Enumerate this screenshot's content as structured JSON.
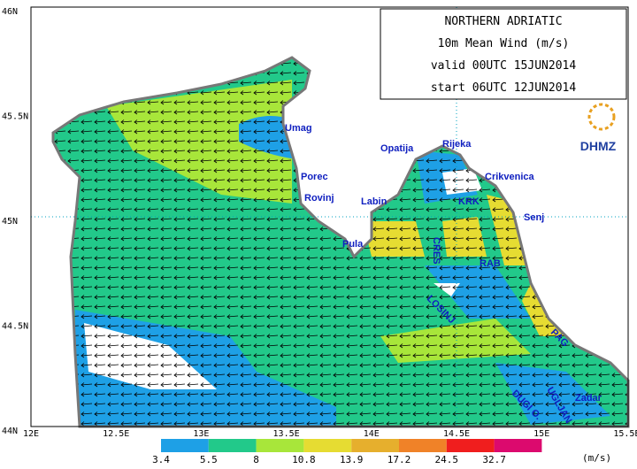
{
  "title_box": {
    "lines": [
      "NORTHERN ADRIATIC",
      "10m Mean Wind (m/s)",
      "valid 00UTC 15JUN2014",
      "start 06UTC 12JUN2014"
    ]
  },
  "logo": "DHMZ",
  "lat_labels": [
    "46N",
    "45.5N",
    "45N",
    "44.5N",
    "44N"
  ],
  "lon_labels": [
    "12E",
    "12.5E",
    "13E",
    "13.5E",
    "14E",
    "14.5E",
    "15E",
    "15.5E"
  ],
  "places": [
    "Umag",
    "Porec",
    "Rovinj",
    "Labin",
    "Pula",
    "Opatija",
    "Rijeka",
    "Crikvenica",
    "KRK",
    "Senj",
    "CRES",
    "RAB",
    "LOSINJ",
    "PAG",
    "Zadar",
    "UGLJAN",
    "DUGI O."
  ],
  "legend": {
    "labels": [
      "3.4",
      "5.5",
      "8",
      "10.8",
      "13.9",
      "17.2",
      "24.5",
      "32.7"
    ],
    "unit": "(m/s)"
  }
}
